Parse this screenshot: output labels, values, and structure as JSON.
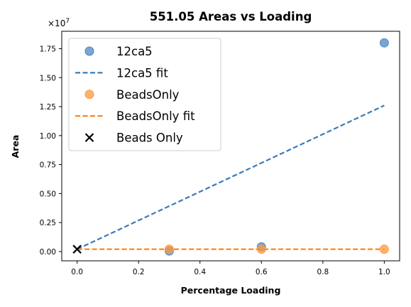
{
  "chart_data": {
    "type": "scatter",
    "title": "551.05 Areas vs Loading",
    "xlabel": "Percentage Loading",
    "ylabel": "Area",
    "y_multiplier_label": "×10",
    "y_multiplier_exponent": "7",
    "y_scale": 10000000,
    "xlim": [
      -0.05,
      1.05
    ],
    "ylim": [
      -800000,
      19000000
    ],
    "x_ticks": [
      0.0,
      0.2,
      0.4,
      0.6,
      0.8,
      1.0
    ],
    "x_tick_labels": [
      "0.0",
      "0.2",
      "0.4",
      "0.6",
      "0.8",
      "1.0"
    ],
    "y_ticks": [
      0,
      2500000,
      5000000,
      7500000,
      10000000,
      12500000,
      15000000,
      17500000
    ],
    "y_tick_labels": [
      "0.00",
      "0.25",
      "0.50",
      "0.75",
      "1.00",
      "1.25",
      "1.50",
      "1.75"
    ],
    "grid": false,
    "legend_position": "top-left",
    "series": [
      {
        "name": "12ca5",
        "kind": "scatter",
        "color": "#4f86c0",
        "x": [
          0.3,
          0.6,
          1.0
        ],
        "y": [
          50000,
          400000,
          18000000
        ]
      },
      {
        "name": "12ca5 fit",
        "kind": "line",
        "color": "#3a7ab8",
        "dash": true,
        "x": [
          0.0,
          1.0
        ],
        "y": [
          200000,
          12600000
        ]
      },
      {
        "name": "BeadsOnly",
        "kind": "scatter",
        "color": "#ff9a3c",
        "x": [
          0.3,
          0.6,
          1.0
        ],
        "y": [
          200000,
          200000,
          200000
        ]
      },
      {
        "name": "BeadsOnly fit",
        "kind": "line",
        "color": "#ff7f0e",
        "dash": true,
        "x": [
          0.0,
          1.0
        ],
        "y": [
          200000,
          200000
        ]
      },
      {
        "name": "Beads Only",
        "kind": "marker-x",
        "color": "#000000",
        "x": [
          0.0
        ],
        "y": [
          200000
        ]
      }
    ]
  }
}
